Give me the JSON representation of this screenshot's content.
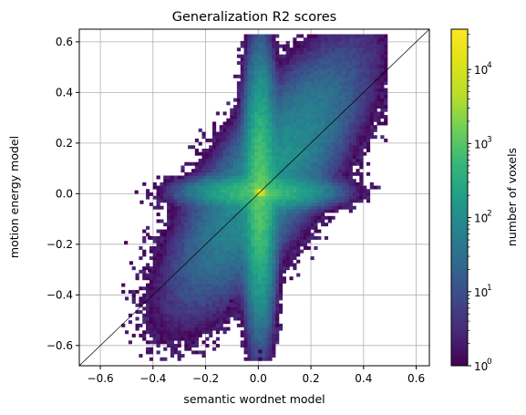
{
  "chart_data": {
    "type": "heatmap",
    "title": "Generalization R2 scores",
    "xlabel": "semantic wordnet model",
    "ylabel": "motion energy model",
    "xlim": [
      -0.68,
      0.65
    ],
    "ylim": [
      -0.68,
      0.65
    ],
    "xticks": [
      -0.6,
      -0.4,
      -0.2,
      0.0,
      0.2,
      0.4,
      0.6
    ],
    "yticks": [
      -0.6,
      -0.4,
      -0.2,
      0.0,
      0.2,
      0.4,
      0.6
    ],
    "xtick_labels": [
      "−0.6",
      "−0.4",
      "−0.2",
      "0.0",
      "0.2",
      "0.4",
      "0.6"
    ],
    "ytick_labels": [
      "−0.6",
      "−0.4",
      "−0.2",
      "0.0",
      "0.2",
      "0.4",
      "0.6"
    ],
    "grid": true,
    "reference_line": {
      "from": [
        -0.68,
        -0.68
      ],
      "to": [
        0.65,
        0.65
      ],
      "color": "#000000"
    },
    "colormap": "viridis",
    "color_scale": "log",
    "colorbar": {
      "label": "number of voxels",
      "min": 1,
      "max": 35000,
      "ticks": [
        1,
        10,
        100,
        1000,
        10000
      ],
      "tick_labels": [
        "10",
        "10",
        "10",
        "10",
        "10"
      ],
      "tick_exponents": [
        "0",
        "1",
        "2",
        "3",
        "4"
      ]
    },
    "density": {
      "description_values": "approximate 2D histogram of voxel counts",
      "bin_size": 0.0133,
      "peak": {
        "x": 0.0,
        "y": 0.0,
        "count": 35000
      },
      "x_range": [
        -0.55,
        0.48
      ],
      "y_range": [
        -0.66,
        0.62
      ],
      "outliers": [
        {
          "x": -0.51,
          "y": -0.2
        },
        {
          "x": -0.49,
          "y": -0.28
        },
        {
          "x": -0.42,
          "y": -0.31
        },
        {
          "x": -0.38,
          "y": -0.25
        },
        {
          "x": -0.12,
          "y": -0.46
        },
        {
          "x": -0.11,
          "y": -0.43
        },
        {
          "x": 0.0,
          "y": -0.63
        },
        {
          "x": 0.0,
          "y": -0.66
        },
        {
          "x": -0.47,
          "y": 0.0
        },
        {
          "x": -0.45,
          "y": -0.04
        },
        {
          "x": -0.42,
          "y": -0.18
        }
      ]
    }
  },
  "colors": {
    "grid": "#b0b0b0",
    "axes": "#000000",
    "background": "#ffffff"
  }
}
